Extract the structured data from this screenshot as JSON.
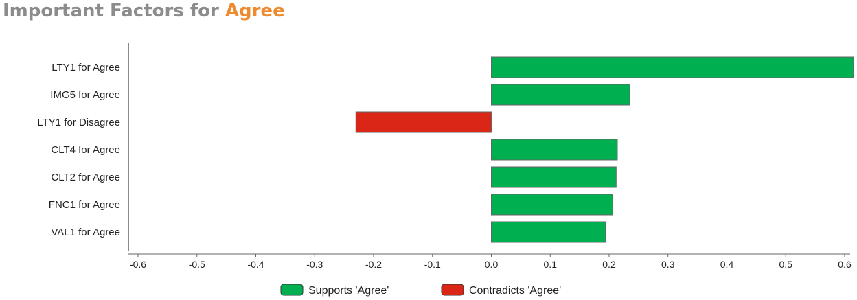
{
  "header": {
    "title_lead": "Important Factors for ",
    "title_accent": "Agree"
  },
  "chart_data": {
    "type": "bar",
    "orientation": "horizontal",
    "categories": [
      "LTY1 for Agree",
      "IMG5 for Agree",
      "LTY1 for Disagree",
      "CLT4 for Agree",
      "CLT2 for Agree",
      "FNC1 for Agree",
      "VAL1 for Agree"
    ],
    "values": [
      0.615,
      0.235,
      -0.23,
      0.214,
      0.212,
      0.206,
      0.194
    ],
    "xlim": [
      -0.6,
      0.6
    ],
    "x_ticks": [
      "-0.6",
      "-0.5",
      "-0.4",
      "-0.3",
      "-0.2",
      "-0.1",
      "0.0",
      "0.1",
      "0.2",
      "0.3",
      "0.4",
      "0.5",
      "0.6"
    ],
    "grid": false,
    "legend": {
      "placement": "bottom",
      "entries": [
        {
          "label": "Supports 'Agree'",
          "color": "#00b050"
        },
        {
          "label": "Contradicts 'Agree'",
          "color": "#d92616"
        }
      ]
    },
    "colors": {
      "positive": "#00b050",
      "negative": "#d92616",
      "bar_stroke": "#666666",
      "axis": "#666666"
    }
  }
}
